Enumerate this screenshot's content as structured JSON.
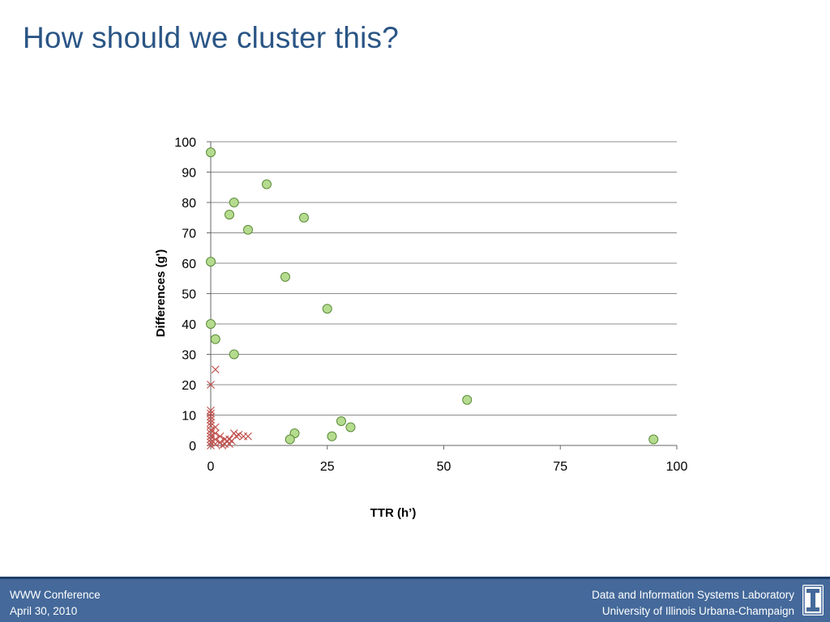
{
  "slide": {
    "title": "How should we cluster this?"
  },
  "colors": {
    "title": "#2a5585",
    "footer_bg": "#44699a",
    "footer_line": "#1f3f6a",
    "circle_fill": "#b5dc8e",
    "circle_stroke": "#5a8a3a",
    "cross": "#c0504d",
    "grid": "#8c8c8c"
  },
  "chart_data": {
    "type": "scatter",
    "title": "",
    "xlabel": "TTR (h’)",
    "ylabel": "Differences (g')",
    "xlim": [
      0,
      100
    ],
    "ylim": [
      0,
      100
    ],
    "xticks": [
      0,
      25,
      50,
      75,
      100
    ],
    "yticks": [
      0,
      10,
      20,
      30,
      40,
      50,
      60,
      70,
      80,
      90,
      100
    ],
    "grid": "horizontal",
    "legend": "none",
    "series": [
      {
        "marker": "circle",
        "points": [
          [
            0,
            96.5
          ],
          [
            12,
            86
          ],
          [
            5,
            80
          ],
          [
            4,
            76
          ],
          [
            20,
            75
          ],
          [
            8,
            71
          ],
          [
            0,
            60.5
          ],
          [
            16,
            55.5
          ],
          [
            25,
            45
          ],
          [
            0,
            40
          ],
          [
            1,
            35
          ],
          [
            5,
            30
          ],
          [
            55,
            15
          ],
          [
            28,
            8
          ],
          [
            30,
            6
          ],
          [
            18,
            4
          ],
          [
            17,
            2
          ],
          [
            26,
            3
          ],
          [
            95,
            2
          ]
        ]
      },
      {
        "marker": "x",
        "points": [
          [
            1,
            25
          ],
          [
            0,
            20
          ],
          [
            0,
            11.5
          ],
          [
            0,
            10.5
          ],
          [
            0,
            9.5
          ],
          [
            0,
            8.5
          ],
          [
            0,
            7.5
          ],
          [
            0,
            6.5
          ],
          [
            0,
            5
          ],
          [
            0,
            4
          ],
          [
            0,
            3
          ],
          [
            0,
            2
          ],
          [
            0,
            1
          ],
          [
            0,
            0
          ],
          [
            1,
            6
          ],
          [
            1,
            4
          ],
          [
            1,
            2
          ],
          [
            1,
            0.5
          ],
          [
            2,
            3
          ],
          [
            2,
            1
          ],
          [
            2.5,
            0
          ],
          [
            3,
            2
          ],
          [
            3,
            0.5
          ],
          [
            3.5,
            1.5
          ],
          [
            4,
            2
          ],
          [
            4,
            0.5
          ],
          [
            4.5,
            1.5
          ],
          [
            5,
            4
          ],
          [
            5.5,
            3
          ],
          [
            6,
            3.5
          ],
          [
            7,
            3
          ],
          [
            8,
            3
          ]
        ]
      }
    ]
  },
  "footer": {
    "left_line1": "WWW Conference",
    "left_line2": "April 30, 2010",
    "right_line1": "Data and Information Systems Laboratory",
    "right_line2": "University of Illinois Urbana-Champaign",
    "logo_icon": "illinois-i-logo"
  }
}
